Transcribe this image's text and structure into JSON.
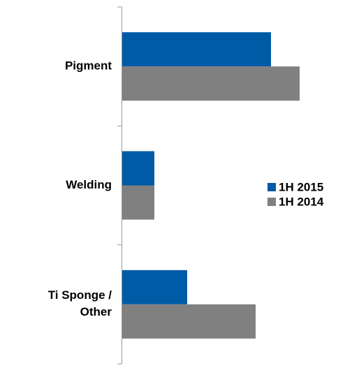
{
  "chart_data": {
    "type": "hbar",
    "categories": [
      "Pigment",
      "Welding",
      "Ti Sponge /\nOther"
    ],
    "series": [
      {
        "name": "1H 2015",
        "color": "#005ba6",
        "values": [
          213,
          46,
          93
        ]
      },
      {
        "name": "1H 2014",
        "color": "#808080",
        "values": [
          254,
          46,
          191
        ]
      }
    ],
    "legend": "right"
  }
}
